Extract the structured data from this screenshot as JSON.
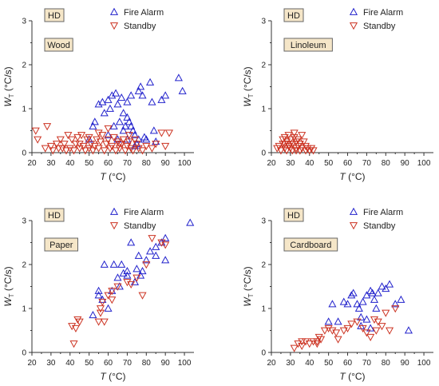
{
  "chart_data": [
    {
      "type": "scatter",
      "tag": "HD",
      "material": "Wood",
      "xlabel": "T (°C)",
      "ylabel_main": "W",
      "ylabel_sub": "T",
      "ylabel_unit": " (°C/s)",
      "xlim": [
        20,
        105
      ],
      "ylim": [
        0,
        3
      ],
      "xticks": [
        "20",
        "30",
        "40",
        "50",
        "60",
        "70",
        "80",
        "90",
        "100"
      ],
      "yticks": [
        "0",
        "1",
        "2",
        "3"
      ],
      "legend_position": "top-right",
      "series": [
        {
          "name": "Fire Alarm",
          "marker": "triangle-up",
          "color": "#2222cc",
          "points": [
            [
              50,
              0.3
            ],
            [
              52,
              0.6
            ],
            [
              53,
              0.7
            ],
            [
              55,
              1.1
            ],
            [
              57,
              1.15
            ],
            [
              58,
              0.9
            ],
            [
              60,
              1.2
            ],
            [
              61,
              1.0
            ],
            [
              62,
              1.3
            ],
            [
              63,
              0.6
            ],
            [
              64,
              1.35
            ],
            [
              65,
              1.1
            ],
            [
              66,
              0.7
            ],
            [
              67,
              1.25
            ],
            [
              68,
              0.9
            ],
            [
              68,
              0.5
            ],
            [
              69,
              0.6
            ],
            [
              70,
              0.8
            ],
            [
              70,
              1.15
            ],
            [
              71,
              0.7
            ],
            [
              72,
              1.3
            ],
            [
              73,
              0.5
            ],
            [
              74,
              0.4
            ],
            [
              75,
              0.2
            ],
            [
              76,
              1.4
            ],
            [
              77,
              1.5
            ],
            [
              78,
              1.3
            ],
            [
              79,
              0.35
            ],
            [
              80,
              0.3
            ],
            [
              82,
              1.6
            ],
            [
              83,
              1.15
            ],
            [
              84,
              0.5
            ],
            [
              85,
              0.25
            ],
            [
              88,
              1.2
            ],
            [
              90,
              1.3
            ],
            [
              97,
              1.7
            ],
            [
              99,
              1.4
            ],
            [
              65,
              0.3
            ],
            [
              60,
              0.4
            ],
            [
              72,
              0.6
            ],
            [
              74,
              0.15
            ],
            [
              76,
              0.3
            ],
            [
              70,
              0.3
            ]
          ]
        },
        {
          "name": "Standby",
          "marker": "triangle-down",
          "color": "#cc3322",
          "points": [
            [
              22,
              0.5
            ],
            [
              23,
              0.3
            ],
            [
              27,
              0.1
            ],
            [
              28,
              0.6
            ],
            [
              30,
              0.15
            ],
            [
              31,
              0.05
            ],
            [
              33,
              0.2
            ],
            [
              34,
              0.1
            ],
            [
              35,
              0.3
            ],
            [
              36,
              0.1
            ],
            [
              37,
              0.2
            ],
            [
              38,
              0.05
            ],
            [
              39,
              0.4
            ],
            [
              40,
              0.1
            ],
            [
              41,
              0.3
            ],
            [
              42,
              0.05
            ],
            [
              43,
              0.2
            ],
            [
              44,
              0.35
            ],
            [
              45,
              0.1
            ],
            [
              46,
              0.4
            ],
            [
              47,
              0.15
            ],
            [
              48,
              0.05
            ],
            [
              49,
              0.3
            ],
            [
              50,
              0.1
            ],
            [
              51,
              0.2
            ],
            [
              52,
              0.05
            ],
            [
              53,
              0.15
            ],
            [
              54,
              0.3
            ],
            [
              55,
              0.1
            ],
            [
              56,
              0.25
            ],
            [
              57,
              0.4
            ],
            [
              58,
              0.05
            ],
            [
              59,
              0.2
            ],
            [
              60,
              0.3
            ],
            [
              61,
              0.1
            ],
            [
              62,
              0.15
            ],
            [
              63,
              0.35
            ],
            [
              64,
              0.05
            ],
            [
              65,
              0.25
            ],
            [
              66,
              0.1
            ],
            [
              67,
              0.2
            ],
            [
              68,
              0.3
            ],
            [
              69,
              0.05
            ],
            [
              70,
              0.15
            ],
            [
              71,
              0.25
            ],
            [
              72,
              0.1
            ],
            [
              73,
              0.05
            ],
            [
              75,
              0.2
            ],
            [
              76,
              0.1
            ],
            [
              78,
              0.05
            ],
            [
              80,
              0.15
            ],
            [
              83,
              0.1
            ],
            [
              85,
              0.2
            ],
            [
              88,
              0.45
            ],
            [
              90,
              0.15
            ],
            [
              92,
              0.45
            ],
            [
              45,
              0.2
            ],
            [
              50,
              0.35
            ],
            [
              55,
              0.45
            ],
            [
              60,
              0.55
            ],
            [
              66,
              0.2
            ],
            [
              71,
              0.4
            ],
            [
              74,
              0.3
            ]
          ]
        }
      ]
    },
    {
      "type": "scatter",
      "tag": "HD",
      "material": "Linoleum",
      "xlabel": "T (°C)",
      "ylabel_main": "W",
      "ylabel_sub": "T",
      "ylabel_unit": " (°C/s)",
      "xlim": [
        20,
        105
      ],
      "ylim": [
        0,
        3
      ],
      "xticks": [
        "20",
        "30",
        "40",
        "50",
        "60",
        "70",
        "80",
        "90",
        "100"
      ],
      "yticks": [
        "0",
        "1",
        "2",
        "3"
      ],
      "legend_position": "top-right",
      "series": [
        {
          "name": "Fire Alarm",
          "marker": "triangle-up",
          "color": "#2222cc",
          "points": []
        },
        {
          "name": "Standby",
          "marker": "triangle-down",
          "color": "#cc3322",
          "points": [
            [
              23,
              0.1
            ],
            [
              24,
              0.15
            ],
            [
              25,
              0.05
            ],
            [
              26,
              0.2
            ],
            [
              26,
              0.3
            ],
            [
              27,
              0.1
            ],
            [
              27,
              0.35
            ],
            [
              28,
              0.05
            ],
            [
              28,
              0.25
            ],
            [
              29,
              0.15
            ],
            [
              29,
              0.4
            ],
            [
              30,
              0.1
            ],
            [
              30,
              0.3
            ],
            [
              31,
              0.05
            ],
            [
              31,
              0.2
            ],
            [
              32,
              0.35
            ],
            [
              32,
              0.45
            ],
            [
              33,
              0.1
            ],
            [
              33,
              0.25
            ],
            [
              34,
              0.15
            ],
            [
              34,
              0.3
            ],
            [
              35,
              0.05
            ],
            [
              35,
              0.2
            ],
            [
              36,
              0.4
            ],
            [
              36,
              0.1
            ],
            [
              37,
              0.25
            ],
            [
              38,
              0.05
            ],
            [
              38,
              0.15
            ],
            [
              39,
              0.1
            ],
            [
              40,
              0.05
            ],
            [
              41,
              0.1
            ],
            [
              42,
              0.05
            ],
            [
              27,
              0.2
            ],
            [
              30,
              0.2
            ],
            [
              33,
              0.05
            ]
          ]
        }
      ]
    },
    {
      "type": "scatter",
      "tag": "HD",
      "material": "Paper",
      "xlabel": "T (°C)",
      "ylabel_main": "W",
      "ylabel_sub": "T",
      "ylabel_unit": " (°C/s)",
      "xlim": [
        20,
        105
      ],
      "ylim": [
        0,
        3
      ],
      "xticks": [
        "20",
        "30",
        "40",
        "50",
        "60",
        "70",
        "80",
        "90",
        "100"
      ],
      "yticks": [
        "0",
        "1",
        "2",
        "3"
      ],
      "legend_position": "top-right",
      "series": [
        {
          "name": "Fire Alarm",
          "marker": "triangle-up",
          "color": "#2222cc",
          "points": [
            [
              52,
              0.85
            ],
            [
              55,
              1.3
            ],
            [
              55,
              1.4
            ],
            [
              57,
              1.2
            ],
            [
              58,
              2.0
            ],
            [
              60,
              1.0
            ],
            [
              62,
              1.4
            ],
            [
              63,
              2.0
            ],
            [
              65,
              1.7
            ],
            [
              66,
              1.5
            ],
            [
              67,
              2.0
            ],
            [
              68,
              1.8
            ],
            [
              70,
              1.75
            ],
            [
              70,
              1.85
            ],
            [
              72,
              2.5
            ],
            [
              74,
              1.6
            ],
            [
              75,
              1.9
            ],
            [
              76,
              2.2
            ],
            [
              77,
              1.75
            ],
            [
              78,
              1.85
            ],
            [
              80,
              2.1
            ],
            [
              82,
              2.3
            ],
            [
              85,
              2.4
            ],
            [
              85,
              2.2
            ],
            [
              88,
              2.5
            ],
            [
              90,
              2.6
            ],
            [
              90,
              2.1
            ],
            [
              103,
              2.95
            ]
          ]
        },
        {
          "name": "Standby",
          "marker": "triangle-down",
          "color": "#cc3322",
          "points": [
            [
              41,
              0.6
            ],
            [
              42,
              0.2
            ],
            [
              43,
              0.55
            ],
            [
              44,
              0.75
            ],
            [
              45,
              0.7
            ],
            [
              55,
              0.7
            ],
            [
              56,
              1.0
            ],
            [
              57,
              1.15
            ],
            [
              58,
              0.7
            ],
            [
              60,
              1.3
            ],
            [
              62,
              1.4
            ],
            [
              65,
              1.5
            ],
            [
              70,
              1.6
            ],
            [
              72,
              1.55
            ],
            [
              75,
              1.7
            ],
            [
              78,
              1.3
            ],
            [
              80,
              2.0
            ],
            [
              83,
              2.6
            ],
            [
              88,
              2.5
            ],
            [
              90,
              2.45
            ],
            [
              62,
              1.2
            ],
            [
              56,
              0.9
            ]
          ]
        }
      ]
    },
    {
      "type": "scatter",
      "tag": "HD",
      "material": "Cardboard",
      "xlabel": "T (°C)",
      "ylabel_main": "W",
      "ylabel_sub": "T",
      "ylabel_unit": " (°C/s)",
      "xlim": [
        20,
        105
      ],
      "ylim": [
        0,
        3
      ],
      "xticks": [
        "20",
        "30",
        "40",
        "50",
        "60",
        "70",
        "80",
        "90",
        "100"
      ],
      "yticks": [
        "0",
        "1",
        "2",
        "3"
      ],
      "legend_position": "top-right",
      "series": [
        {
          "name": "Fire Alarm",
          "marker": "triangle-up",
          "color": "#2222cc",
          "points": [
            [
              50,
              0.7
            ],
            [
              52,
              1.1
            ],
            [
              55,
              0.7
            ],
            [
              58,
              1.15
            ],
            [
              60,
              1.1
            ],
            [
              62,
              1.3
            ],
            [
              63,
              1.35
            ],
            [
              65,
              1.1
            ],
            [
              66,
              1.0
            ],
            [
              67,
              0.8
            ],
            [
              68,
              1.15
            ],
            [
              70,
              0.75
            ],
            [
              70,
              1.3
            ],
            [
              72,
              1.4
            ],
            [
              73,
              1.35
            ],
            [
              74,
              1.2
            ],
            [
              75,
              1.0
            ],
            [
              76,
              1.35
            ],
            [
              78,
              1.5
            ],
            [
              80,
              1.45
            ],
            [
              82,
              1.55
            ],
            [
              85,
              1.1
            ],
            [
              88,
              1.2
            ],
            [
              92,
              0.5
            ],
            [
              67,
              0.6
            ],
            [
              72,
              0.55
            ]
          ]
        },
        {
          "name": "Standby",
          "marker": "triangle-down",
          "color": "#cc3322",
          "points": [
            [
              32,
              0.1
            ],
            [
              34,
              0.2
            ],
            [
              36,
              0.15
            ],
            [
              38,
              0.25
            ],
            [
              40,
              0.2
            ],
            [
              42,
              0.25
            ],
            [
              44,
              0.2
            ],
            [
              45,
              0.35
            ],
            [
              46,
              0.3
            ],
            [
              48,
              0.5
            ],
            [
              50,
              0.55
            ],
            [
              52,
              0.5
            ],
            [
              54,
              0.45
            ],
            [
              55,
              0.3
            ],
            [
              58,
              0.5
            ],
            [
              60,
              0.55
            ],
            [
              62,
              0.65
            ],
            [
              65,
              0.7
            ],
            [
              68,
              0.55
            ],
            [
              70,
              0.45
            ],
            [
              72,
              0.35
            ],
            [
              74,
              0.75
            ],
            [
              76,
              0.7
            ],
            [
              78,
              0.6
            ],
            [
              80,
              0.9
            ],
            [
              82,
              0.5
            ],
            [
              85,
              1.0
            ],
            [
              75,
              0.5
            ],
            [
              44,
              0.25
            ],
            [
              36,
              0.25
            ]
          ]
        }
      ]
    }
  ]
}
